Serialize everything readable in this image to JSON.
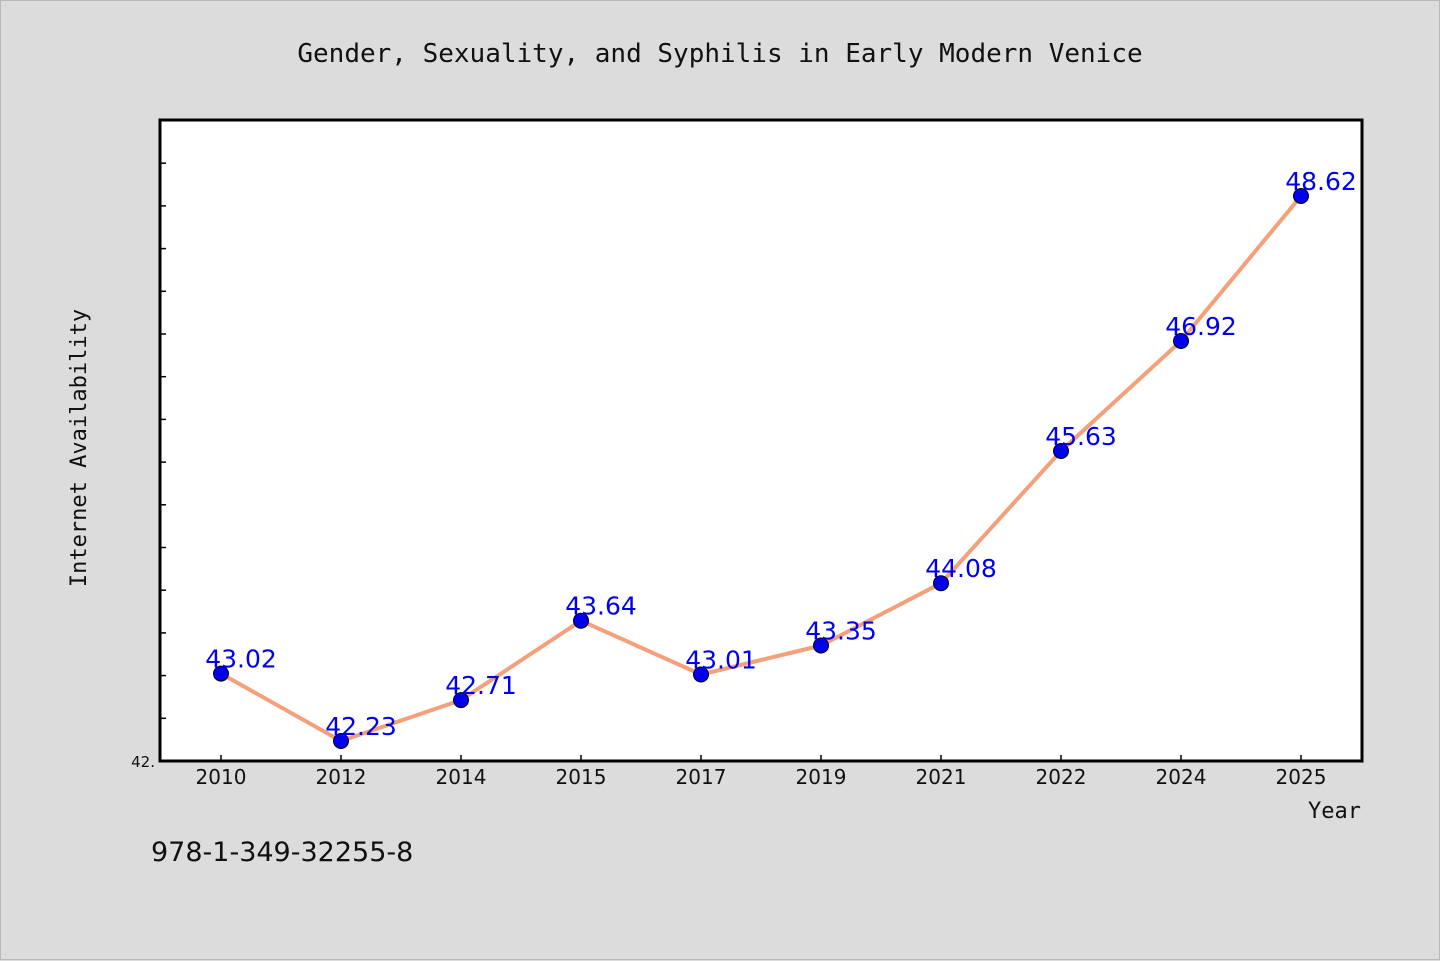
{
  "chart_data": {
    "type": "line",
    "title": "Gender, Sexuality, and Syphilis in Early Modern Venice",
    "xlabel": "Year",
    "ylabel": "Internet Availability",
    "categories": [
      "2010",
      "2012",
      "2014",
      "2015",
      "2017",
      "2019",
      "2021",
      "2022",
      "2024",
      "2025"
    ],
    "series": [
      {
        "values": [
          43.02,
          42.23,
          42.71,
          43.64,
          43.01,
          43.35,
          44.08,
          45.63,
          46.92,
          48.62
        ],
        "labels": [
          "43.02",
          "42.23",
          "42.71",
          "43.64",
          "43.01",
          "43.35",
          "44.08",
          "45.63",
          "46.92",
          "48.62"
        ]
      }
    ],
    "y_tick_label": "42.",
    "ylim": [
      42.0,
      49.5
    ],
    "grid": false,
    "line_color": "#f4a07a",
    "marker_color": "#0000ee",
    "label_color": "#0000ee"
  },
  "footer": {
    "code": "978-1-349-32255-8"
  }
}
